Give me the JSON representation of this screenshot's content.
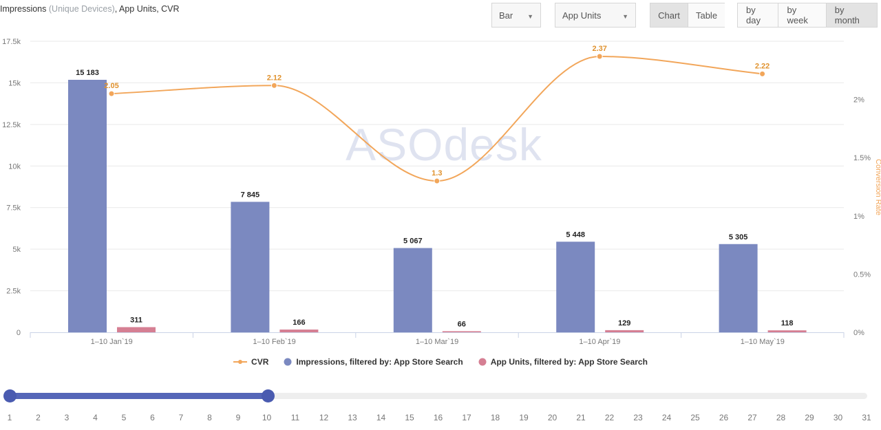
{
  "header": {
    "title_main": "Impressions",
    "title_sub": "(Unique Devices)",
    "title_rest": ", App Units, CVR"
  },
  "controls": {
    "chart_type": "Bar",
    "metric": "App Units",
    "view_tabs": [
      "Chart",
      "Table"
    ],
    "view_active": "Chart",
    "period_tabs": [
      "by day",
      "by week",
      "by month"
    ],
    "period_active": "by month"
  },
  "watermark": "ASOdesk",
  "colors": {
    "impressions": "#7b89c0",
    "app_units": "#d57f93",
    "cvr": "#f2a65a",
    "cvr_label": "#e0922e",
    "slider": "#5566b8"
  },
  "chart_data": {
    "type": "bar",
    "categories": [
      "1–10 Jan`19",
      "1–10 Feb`19",
      "1–10 Mar`19",
      "1–10 Apr`19",
      "1–10 May`19"
    ],
    "series": [
      {
        "name": "Impressions, filtered by: App Store Search",
        "type": "bar",
        "axis": "left",
        "values": [
          15183,
          7845,
          5067,
          5448,
          5305
        ],
        "labels": [
          "15 183",
          "7 845",
          "5 067",
          "5 448",
          "5 305"
        ]
      },
      {
        "name": "App Units, filtered by: App Store Search",
        "type": "bar",
        "axis": "left",
        "values": [
          311,
          166,
          66,
          129,
          118
        ],
        "labels": [
          "311",
          "166",
          "66",
          "129",
          "118"
        ]
      },
      {
        "name": "CVR",
        "type": "line",
        "axis": "right",
        "values": [
          2.05,
          2.12,
          1.3,
          2.37,
          2.22
        ],
        "labels": [
          "2.05",
          "2.12",
          "1.3",
          "2.37",
          "2.22"
        ]
      }
    ],
    "y_left": {
      "ticks": [
        0,
        2500,
        5000,
        7500,
        10000,
        12500,
        15000,
        17500
      ],
      "tick_labels": [
        "0",
        "2.5k",
        "5k",
        "7.5k",
        "10k",
        "12.5k",
        "15k",
        "17.5k"
      ],
      "ylim": [
        0,
        17500
      ]
    },
    "y_right": {
      "label": "Conversion Rate",
      "ticks": [
        0,
        0.5,
        1,
        1.5,
        2
      ],
      "tick_labels": [
        "0%",
        "0.5%",
        "1%",
        "1.5%",
        "2%"
      ],
      "ylim": [
        0,
        2.5
      ]
    },
    "legend_order": [
      "CVR",
      "Impressions, filtered by: App Store Search",
      "App Units, filtered by: App Store Search"
    ],
    "legend_position": "bottom-center",
    "grid": true
  },
  "slider": {
    "days": [
      1,
      2,
      3,
      4,
      5,
      6,
      7,
      8,
      9,
      10,
      11,
      12,
      13,
      14,
      15,
      16,
      17,
      18,
      19,
      20,
      21,
      22,
      23,
      24,
      25,
      26,
      27,
      28,
      29,
      30,
      31
    ],
    "range": [
      1,
      10
    ]
  }
}
